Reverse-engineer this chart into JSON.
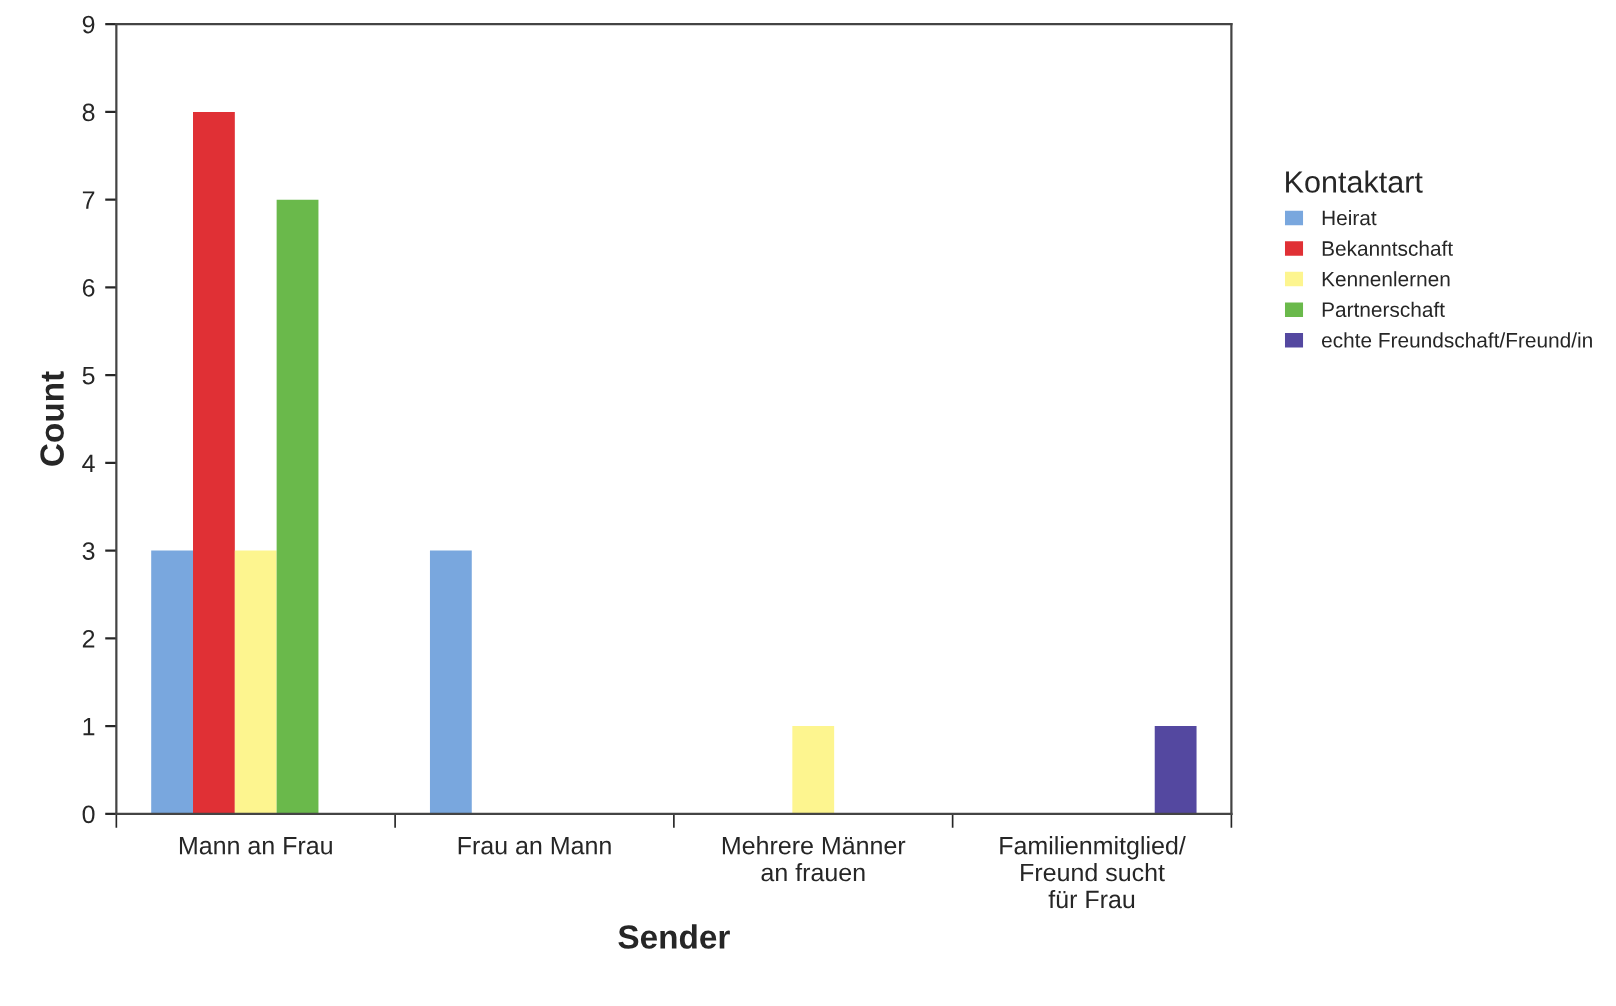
{
  "chart_data": {
    "type": "bar",
    "xlabel": "Sender",
    "ylabel": "Count",
    "legend_title": "Kontaktart",
    "categories": [
      "Mann an Frau",
      "Frau an Mann",
      "Mehrere Männer\nan frauen",
      "Familienmitglied/\nFreund sucht\nfür Frau"
    ],
    "series": [
      {
        "name": "Heirat",
        "color": "#79a7de",
        "values": [
          3,
          3,
          0,
          0
        ]
      },
      {
        "name": "Bekanntschaft",
        "color": "#e03035",
        "values": [
          8,
          0,
          0,
          0
        ]
      },
      {
        "name": "Kennenlernen",
        "color": "#fdf58f",
        "values": [
          3,
          0,
          1,
          0
        ]
      },
      {
        "name": "Partnerschaft",
        "color": "#6ab94b",
        "values": [
          7,
          0,
          0,
          0
        ]
      },
      {
        "name": "echte Freundschaft/Freund/in",
        "color": "#5448a0",
        "values": [
          0,
          0,
          0,
          1
        ]
      }
    ],
    "ylim": [
      0,
      9
    ],
    "yticks": [
      0,
      1,
      2,
      3,
      4,
      5,
      6,
      7,
      8,
      9
    ],
    "grid": false,
    "legend": "right"
  }
}
